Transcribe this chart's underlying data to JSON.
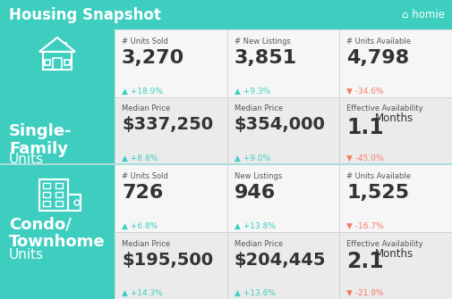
{
  "title": "Housing Snapshot",
  "logo_text": "⌂ homie",
  "header_bg": "#3ecec0",
  "left_panel_bg": "#3ecec0",
  "cell_bg_light": "#eeeeee",
  "cell_bg_white": "#f8f8f8",
  "dark_text": "#333333",
  "label_text": "#555555",
  "arrow_up_color": "#3ecec0",
  "arrow_down_color": "#f47c6a",
  "section1_label_bold": "Single-\nFamily",
  "section1_label_light": "Units",
  "section2_label_bold": "Condo/\nTownhome",
  "section2_label_light": "Units",
  "row1": {
    "col1": {
      "label": "# Units Sold",
      "value": "3,270",
      "change": "+18.9%",
      "up": true
    },
    "col2": {
      "label": "# New Listings",
      "value": "3,851",
      "change": "+9.3%",
      "up": true
    },
    "col3": {
      "label": "# Units Available",
      "value": "4,798",
      "change": "-34.6%",
      "up": false
    }
  },
  "row2": {
    "col1": {
      "label": "Median Price",
      "value": "$337,250",
      "change": "+8.8%",
      "up": true
    },
    "col2": {
      "label": "Median Price",
      "value": "$354,000",
      "change": "+9.0%",
      "up": true
    },
    "col3": {
      "label": "Effective Availability",
      "value": "1.1",
      "value2": "Months",
      "change": "-45.0%",
      "up": false
    }
  },
  "row3": {
    "col1": {
      "label": "# Units Sold",
      "value": "726",
      "change": "+6.8%",
      "up": true
    },
    "col2": {
      "label": "New Listings",
      "value": "946",
      "change": "+13.8%",
      "up": true
    },
    "col3": {
      "label": "# Units Available",
      "value": "1,525",
      "change": "-16.7%",
      "up": false
    }
  },
  "row4": {
    "col1": {
      "label": "Median Price",
      "value": "$195,500",
      "change": "+14.3%",
      "up": true
    },
    "col2": {
      "label": "Median Price",
      "value": "$204,445",
      "change": "+13.6%",
      "up": true
    },
    "col3": {
      "label": "Effective Availability",
      "value": "2.1",
      "value2": "Months",
      "change": "-21.9%",
      "up": false
    }
  }
}
